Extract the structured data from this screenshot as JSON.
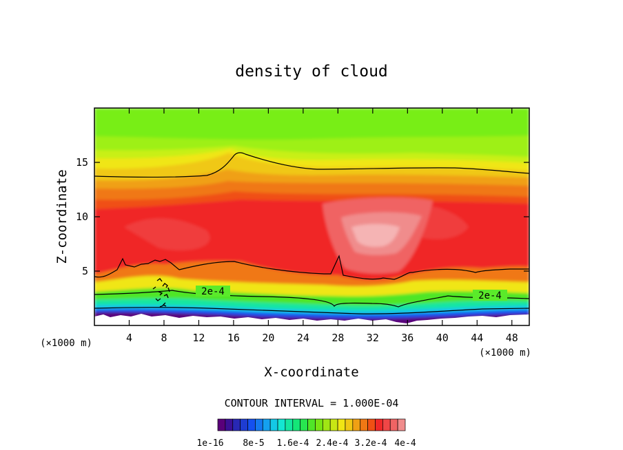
{
  "chart_data": {
    "type": "contour",
    "title": "density of cloud",
    "xlabel": "X-coordinate",
    "ylabel": "Z-coordinate",
    "x_unit": "(×1000 m)",
    "y_unit": "(×1000 m)",
    "xlim": [
      0,
      50
    ],
    "ylim": [
      0,
      20
    ],
    "x_ticks": [
      4,
      8,
      12,
      16,
      20,
      24,
      28,
      32,
      36,
      40,
      44,
      48
    ],
    "y_ticks": [
      5,
      10,
      15
    ],
    "contour_interval_text": "CONTOUR INTERVAL = 1.000E-04",
    "contour_labels": [
      {
        "text": "2e-4",
        "x": 13,
        "z": 3.0
      },
      {
        "text": "2e-4",
        "x": 45,
        "z": 2.6
      }
    ],
    "colorbar": {
      "colors": [
        "#5a007a",
        "#3c1096",
        "#2828b4",
        "#1e3cd2",
        "#1450f0",
        "#1478f0",
        "#14a0f0",
        "#14c8e6",
        "#14e6d2",
        "#14e6a0",
        "#14e678",
        "#28e650",
        "#50e628",
        "#78e614",
        "#a0e614",
        "#c8e614",
        "#f0e614",
        "#f0c814",
        "#f0a014",
        "#f07814",
        "#f05014",
        "#f02828",
        "#f04646",
        "#f06464",
        "#f08c8c"
      ],
      "tick_labels": [
        "1e-16",
        "8e-5",
        "1.6e-4",
        "2.4e-4",
        "3.2e-4",
        "4e-4"
      ]
    }
  }
}
